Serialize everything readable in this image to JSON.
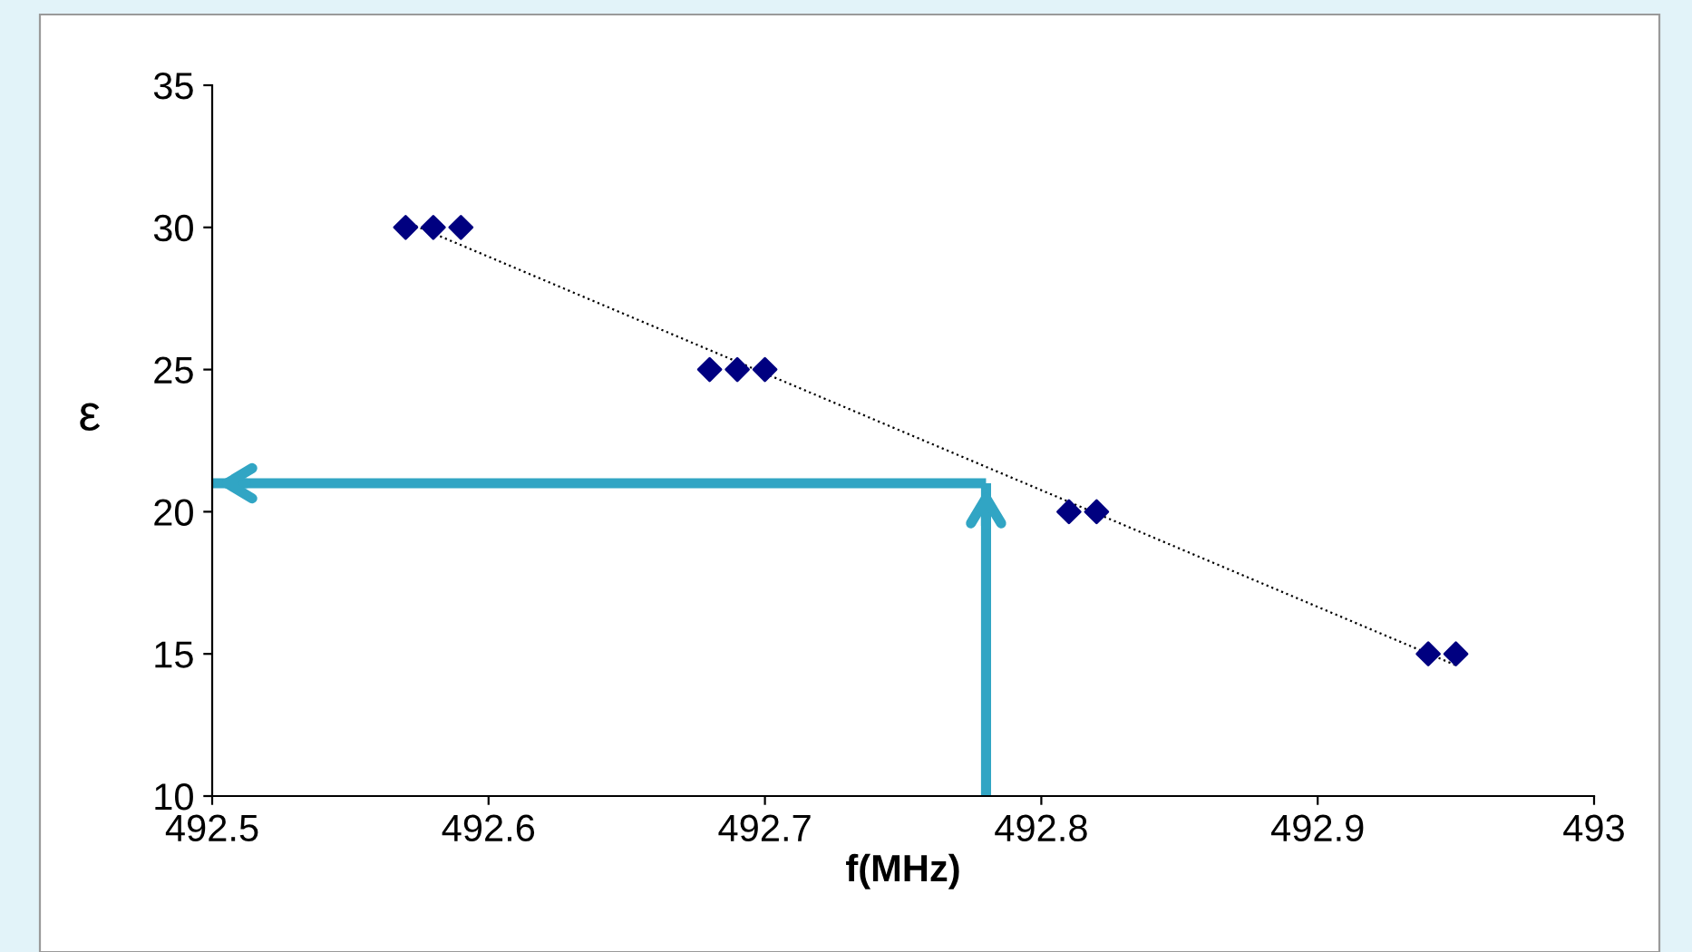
{
  "chart_data": {
    "type": "scatter",
    "xlabel": "f(MHz)",
    "ylabel": "ε",
    "marker": "diamond",
    "grid": false,
    "legend": false,
    "xlim": [
      492.5,
      493
    ],
    "xticks": [
      492.5,
      492.6,
      492.7,
      492.8,
      492.9,
      493
    ],
    "ylim": [
      10,
      35
    ],
    "yticks": [
      10,
      15,
      20,
      25,
      30,
      35
    ],
    "series": [
      {
        "color": "#000080",
        "x": [
          492.57,
          492.58,
          492.59,
          492.68,
          492.69,
          492.7,
          492.81,
          492.82,
          492.94,
          492.95
        ],
        "values": [
          30,
          30,
          30,
          25,
          25,
          25,
          20,
          20,
          15,
          15
        ]
      },
      {
        "type": "line",
        "marker": "none",
        "line_style": "dotted",
        "color": "#000000",
        "x": [
          492.57,
          492.95
        ],
        "values": [
          30.2,
          14.6
        ]
      },
      {
        "type": "line",
        "marker": "none",
        "line_style": "solid",
        "color": "#31a5c4",
        "x": [
          492.78,
          492.78
        ],
        "values": [
          10,
          21
        ]
      },
      {
        "type": "line",
        "marker": "none",
        "line_style": "solid",
        "color": "#31a5c4",
        "x": [
          492.78,
          492.5
        ],
        "values": [
          21,
          21
        ]
      }
    ]
  }
}
